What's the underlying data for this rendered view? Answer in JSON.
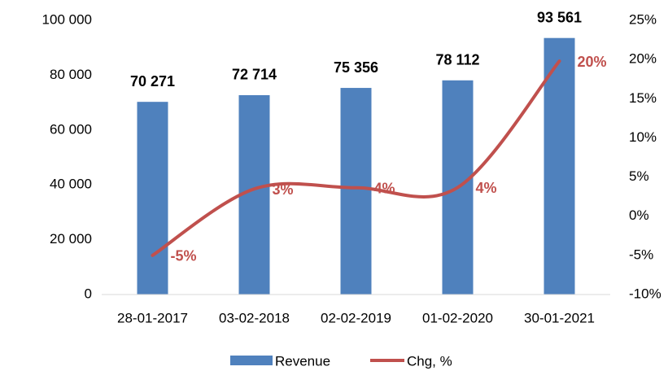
{
  "chart_data": {
    "type": "bar",
    "categories": [
      "28-01-2017",
      "03-02-2018",
      "02-02-2019",
      "01-02-2020",
      "30-01-2021"
    ],
    "series": [
      {
        "name": "Revenue",
        "type": "bar",
        "color": "#4f81bd",
        "values": [
          70271,
          72714,
          75356,
          78112,
          93561
        ],
        "value_labels": [
          "70 271",
          "72 714",
          "75 356",
          "78 112",
          "93 561"
        ]
      },
      {
        "name": "Chg, %",
        "type": "line",
        "axis": "y2",
        "color": "#c0504d",
        "values": [
          -5,
          3.48,
          3.63,
          3.66,
          19.8
        ],
        "value_labels": [
          "-5%",
          "3%",
          "4%",
          "4%",
          "20%"
        ]
      }
    ],
    "ylim": [
      0,
      100000
    ],
    "yticks": [
      0,
      {
        "value": 20000,
        "label": "20 000"
      },
      {
        "value": 40000,
        "label": "40 000"
      },
      {
        "value": 60000,
        "label": "60 000"
      },
      {
        "value": 80000,
        "label": "80 000"
      },
      {
        "value": 100000,
        "label": "100 000"
      }
    ],
    "y2lim": [
      -10,
      25
    ],
    "y2ticks": [
      {
        "value": -10,
        "label": "-10%"
      },
      {
        "value": -5,
        "label": "-5%"
      },
      {
        "value": 0,
        "label": "0%"
      },
      {
        "value": 5,
        "label": "5%"
      },
      {
        "value": 10,
        "label": "10%"
      },
      {
        "value": 15,
        "label": "15%"
      },
      {
        "value": 20,
        "label": "20%"
      },
      {
        "value": 25,
        "label": "25%"
      }
    ],
    "grid": false,
    "legend": "bottom"
  }
}
